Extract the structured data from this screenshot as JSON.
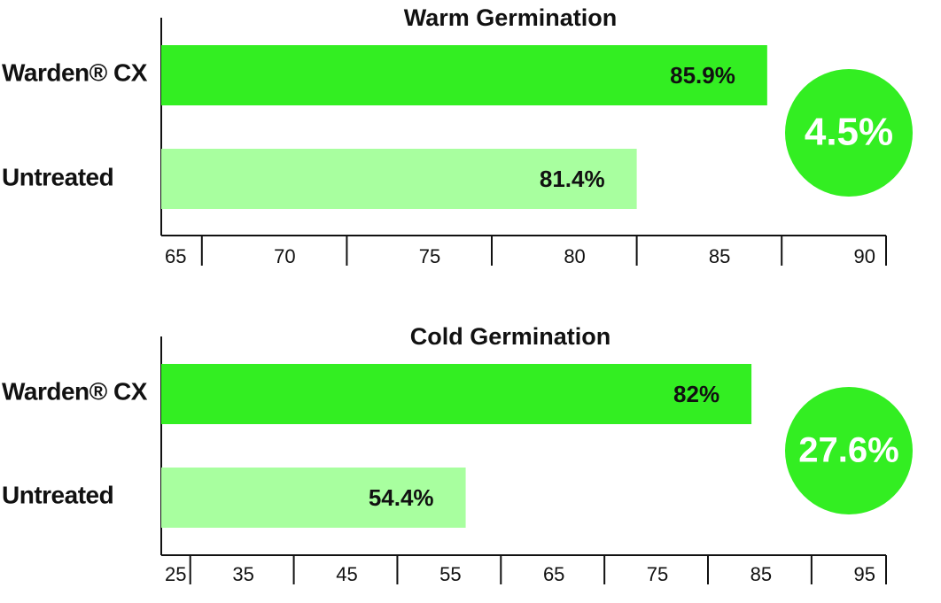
{
  "chart_data": [
    {
      "type": "bar",
      "orientation": "horizontal",
      "title": "Warm Germination",
      "categories": [
        "Warden® CX",
        "Untreated"
      ],
      "values": [
        85.9,
        81.4
      ],
      "value_labels": [
        "85.9%",
        "81.4%"
      ],
      "colors": [
        "#33ee22",
        "#a8ff9f"
      ],
      "xlim": [
        65,
        90
      ],
      "ticks": [
        65,
        70,
        75,
        80,
        85,
        90
      ],
      "difference_label": "4.5%"
    },
    {
      "type": "bar",
      "orientation": "horizontal",
      "title": "Cold Germination",
      "categories": [
        "Warden® CX",
        "Untreated"
      ],
      "values": [
        82,
        54.4
      ],
      "value_labels": [
        "82%",
        "54.4%"
      ],
      "colors": [
        "#33ee22",
        "#a8ff9f"
      ],
      "xlim": [
        25,
        95
      ],
      "ticks": [
        25,
        35,
        45,
        55,
        65,
        75,
        85,
        95
      ],
      "difference_label": "27.6%"
    }
  ],
  "colors": {
    "accent": "#33ee22",
    "accent_light": "#a8ff9f",
    "text": "#111111"
  }
}
